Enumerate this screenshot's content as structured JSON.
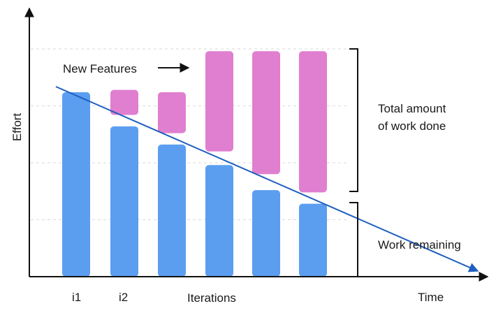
{
  "chart_data": {
    "type": "bar",
    "title": "",
    "xlabel": "Time",
    "ylabel": "Effort",
    "x_caption": "Iterations",
    "x_tick_labels": [
      "i1",
      "i2"
    ],
    "ylim": [
      0,
      100
    ],
    "grid": true,
    "series": [
      {
        "role": "remaining",
        "color": "#5b9ef0",
        "values": [
          81,
          66,
          58,
          49,
          38,
          32
        ]
      },
      {
        "role": "new-features",
        "color": "#e07fd0",
        "ranges": [
          null,
          [
            71,
            82
          ],
          [
            63,
            81
          ],
          [
            55,
            99
          ],
          [
            45,
            99
          ],
          [
            37,
            99
          ]
        ]
      }
    ],
    "annotations": {
      "new_features": "New Features",
      "total_work_line1": "Total amount",
      "total_work_line2": "of work done",
      "work_remaining": "Work remaining"
    },
    "trend_line_color": "#1f5fbf",
    "axis_color": "#111111",
    "grid_color": "#d9d9d9"
  }
}
